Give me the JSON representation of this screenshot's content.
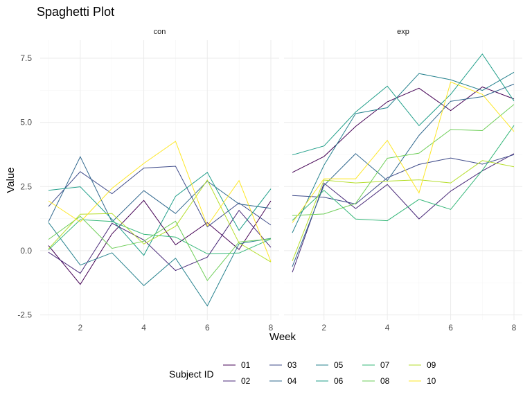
{
  "chart_data": {
    "type": "line",
    "title": "Spaghetti Plot",
    "xlabel": "Week",
    "ylabel": "Value",
    "legend_title": "Subject ID",
    "legend_position": "bottom",
    "grid": true,
    "x": [
      1,
      2,
      3,
      4,
      5,
      6,
      7,
      8
    ],
    "x_ticks": [
      2,
      4,
      6,
      8
    ],
    "y_ticks": [
      -2.5,
      0.0,
      2.5,
      5.0,
      7.5
    ],
    "y_tick_labels": [
      "-2.5",
      "0.0",
      "2.5",
      "5.0",
      "7.5"
    ],
    "xlim": [
      1,
      8
    ],
    "ylim": [
      -2.5,
      8
    ],
    "panels": [
      {
        "label": "con",
        "series": [
          {
            "name": "01",
            "values": [
              0.2,
              -1.31,
              0.66,
              1.96,
              0.23,
              1.09,
              0.05,
              1.94
            ]
          },
          {
            "name": "02",
            "values": [
              -0.06,
              -0.88,
              1.07,
              0.42,
              -0.77,
              -0.25,
              1.57,
              0.13
            ]
          },
          {
            "name": "03",
            "values": [
              1.72,
              3.08,
              2.22,
              3.22,
              3.29,
              0.93,
              1.86,
              1.0
            ]
          },
          {
            "name": "04",
            "values": [
              1.13,
              3.66,
              1.12,
              2.34,
              1.45,
              2.71,
              1.82,
              1.65
            ]
          },
          {
            "name": "05",
            "values": [
              1.1,
              -0.56,
              -0.08,
              -1.36,
              -0.29,
              -2.15,
              0.27,
              0.48
            ]
          },
          {
            "name": "06",
            "values": [
              2.35,
              2.49,
              1.22,
              -0.18,
              2.12,
              3.05,
              0.79,
              2.41
            ]
          },
          {
            "name": "07",
            "values": [
              0.03,
              1.21,
              1.14,
              0.64,
              0.53,
              -0.12,
              -0.09,
              0.46
            ]
          },
          {
            "name": "08",
            "values": [
              0.44,
              1.34,
              0.09,
              0.37,
              1.15,
              -1.16,
              0.34,
              0.46
            ]
          },
          {
            "name": "09",
            "values": [
              0.07,
              1.42,
              1.45,
              0.26,
              0.95,
              2.75,
              0.3,
              -0.44
            ]
          },
          {
            "name": "10",
            "values": [
              1.94,
              1.12,
              2.43,
              3.4,
              4.26,
              0.97,
              2.73,
              -0.42
            ]
          }
        ]
      },
      {
        "label": "exp",
        "series": [
          {
            "name": "01",
            "values": [
              3.05,
              3.67,
              4.84,
              5.8,
              6.33,
              5.46,
              6.38,
              5.91
            ]
          },
          {
            "name": "02",
            "values": [
              -0.84,
              2.63,
              1.64,
              2.58,
              1.24,
              2.32,
              3.11,
              3.78
            ]
          },
          {
            "name": "03",
            "values": [
              2.15,
              2.08,
              1.82,
              2.84,
              3.36,
              3.61,
              3.37,
              3.74
            ]
          },
          {
            "name": "04",
            "values": [
              -0.62,
              2.54,
              3.78,
              2.73,
              4.49,
              5.82,
              6.0,
              6.49
            ]
          },
          {
            "name": "05",
            "values": [
              0.7,
              3.33,
              5.34,
              5.57,
              6.9,
              6.66,
              6.24,
              6.95
            ]
          },
          {
            "name": "06",
            "values": [
              3.73,
              4.08,
              5.4,
              6.41,
              4.87,
              6.09,
              7.66,
              5.83
            ]
          },
          {
            "name": "07",
            "values": [
              1.18,
              2.35,
              1.23,
              1.17,
              2.0,
              1.61,
              3.13,
              4.88
            ]
          },
          {
            "name": "08",
            "values": [
              1.37,
              1.43,
              1.84,
              3.6,
              3.8,
              4.72,
              4.68,
              5.7
            ]
          },
          {
            "name": "09",
            "values": [
              -0.4,
              2.75,
              2.64,
              2.71,
              2.76,
              2.64,
              3.51,
              3.27
            ]
          },
          {
            "name": "10",
            "values": [
              1.09,
              2.8,
              2.8,
              4.3,
              2.25,
              6.57,
              6.09,
              4.64
            ]
          }
        ]
      }
    ],
    "colors": {
      "01": "#440154",
      "02": "#482878",
      "03": "#3e4a89",
      "04": "#31688e",
      "05": "#26828e",
      "06": "#1f9e89",
      "07": "#35b779",
      "08": "#6ece58",
      "09": "#b5de2b",
      "10": "#fde725"
    },
    "legend_layout": [
      [
        "01",
        "03",
        "05",
        "07",
        "09"
      ],
      [
        "02",
        "04",
        "06",
        "08",
        "10"
      ]
    ]
  }
}
